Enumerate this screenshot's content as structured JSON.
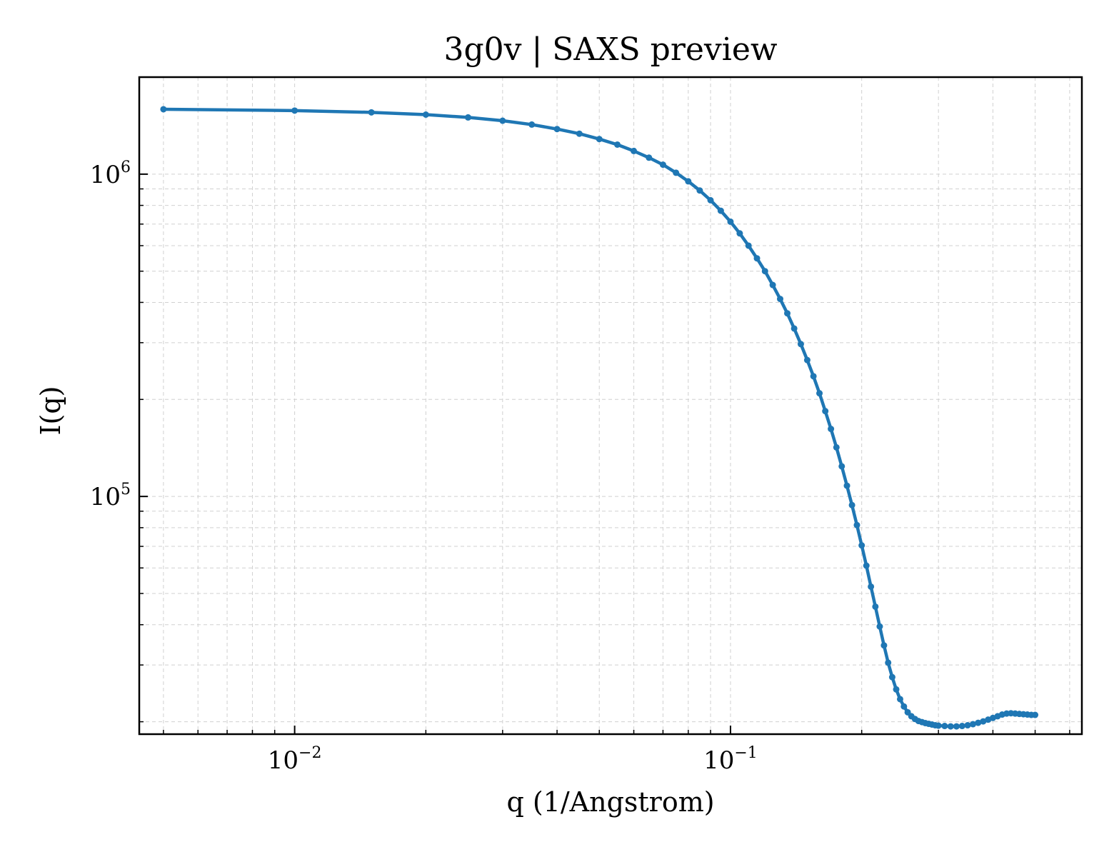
{
  "chart_data": {
    "type": "line",
    "title": "3g0v | SAXS preview",
    "xlabel": "q (1/Angstrom)",
    "ylabel": "I(q)",
    "xscale": "log",
    "yscale": "log",
    "xlim": [
      0.0044,
      0.64
    ],
    "ylim": [
      18300,
      2000000
    ],
    "grid": true,
    "legend": "none",
    "x_ticks": [
      {
        "base": "10",
        "exp": "−2",
        "value": 0.01
      },
      {
        "base": "10",
        "exp": "−1",
        "value": 0.1
      }
    ],
    "y_ticks": [
      {
        "base": "10",
        "exp": "5",
        "value": 100000
      },
      {
        "base": "10",
        "exp": "6",
        "value": 1000000
      }
    ],
    "series": [
      {
        "color": "#1f77b4",
        "x": [
          0.005,
          0.01,
          0.015,
          0.02,
          0.025,
          0.03,
          0.035,
          0.04,
          0.045,
          0.05,
          0.055,
          0.06,
          0.065,
          0.07,
          0.075,
          0.08,
          0.085,
          0.09,
          0.095,
          0.1,
          0.105,
          0.11,
          0.115,
          0.12,
          0.125,
          0.13,
          0.135,
          0.14,
          0.145,
          0.15,
          0.155,
          0.16,
          0.165,
          0.17,
          0.175,
          0.18,
          0.185,
          0.19,
          0.195,
          0.2,
          0.205,
          0.21,
          0.215,
          0.22,
          0.225,
          0.23,
          0.235,
          0.24,
          0.245,
          0.25,
          0.255,
          0.26,
          0.265,
          0.27,
          0.275,
          0.28,
          0.285,
          0.29,
          0.295,
          0.3,
          0.31,
          0.32,
          0.33,
          0.34,
          0.35,
          0.36,
          0.37,
          0.38,
          0.39,
          0.4,
          0.41,
          0.42,
          0.43,
          0.44,
          0.45,
          0.46,
          0.47,
          0.48,
          0.49,
          0.5
        ],
        "y": [
          1590000,
          1575000,
          1555000,
          1530000,
          1500000,
          1465000,
          1425000,
          1380000,
          1335000,
          1285000,
          1235000,
          1180000,
          1125000,
          1070000,
          1010000,
          950000,
          890000,
          830000,
          770000,
          712000,
          655000,
          600000,
          548000,
          500000,
          453000,
          410000,
          370000,
          332000,
          297000,
          265000,
          236000,
          209000,
          184000,
          162000,
          142000,
          124000,
          108000,
          94000,
          81500,
          70500,
          61000,
          52500,
          45500,
          39500,
          34500,
          30500,
          27500,
          25200,
          23500,
          22300,
          21400,
          20800,
          20400,
          20100,
          19950,
          19800,
          19700,
          19600,
          19500,
          19450,
          19400,
          19350,
          19350,
          19400,
          19500,
          19650,
          19850,
          20050,
          20300,
          20550,
          20800,
          21050,
          21200,
          21250,
          21200,
          21150,
          21100,
          21050,
          21000,
          21000
        ]
      }
    ]
  }
}
